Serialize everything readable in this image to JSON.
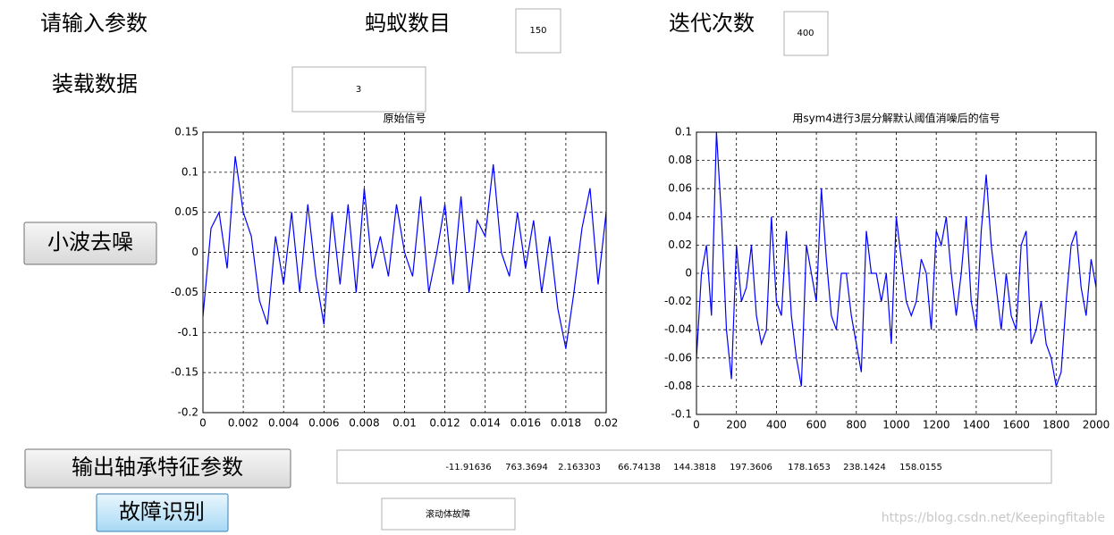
{
  "labels": {
    "prompt": "请输入参数",
    "ants": "蚂蚁数目",
    "iterations": "迭代次数",
    "load": "装载数据"
  },
  "inputs": {
    "ants": 150,
    "iterations": 400,
    "load": 3
  },
  "buttons": {
    "denoise": "小波去噪",
    "features": "输出轴承特征参数",
    "identify": "故障识别"
  },
  "features": [
    -11.91636,
    763.3694,
    2.163303,
    66.74138,
    144.3818,
    197.3606,
    178.1653,
    238.1424,
    158.0155
  ],
  "result": "滚动体故障",
  "watermark": "https://blog.csdn.net/Keepingfitable",
  "chart_data": [
    {
      "type": "line",
      "title": "原始信号",
      "color": "#0000ff",
      "grid": true,
      "x": [
        0,
        0.0004,
        0.0008,
        0.0012,
        0.0016,
        0.002,
        0.0024,
        0.0028,
        0.0032,
        0.0036,
        0.004,
        0.0044,
        0.0048,
        0.0052,
        0.0056,
        0.006,
        0.0064,
        0.0068,
        0.0072,
        0.0076,
        0.008,
        0.0084,
        0.0088,
        0.0092,
        0.0096,
        0.01,
        0.0104,
        0.0108,
        0.0112,
        0.0116,
        0.012,
        0.0124,
        0.0128,
        0.0132,
        0.0136,
        0.014,
        0.0144,
        0.0148,
        0.0152,
        0.0156,
        0.016,
        0.0164,
        0.0168,
        0.0172,
        0.0176,
        0.018,
        0.0184,
        0.0188,
        0.0192,
        0.0196,
        0.02
      ],
      "values": [
        -0.08,
        0.03,
        0.05,
        -0.02,
        0.12,
        0.05,
        0.02,
        -0.06,
        -0.09,
        0.02,
        -0.04,
        0.05,
        -0.05,
        0.06,
        -0.03,
        -0.09,
        0.05,
        -0.04,
        0.06,
        -0.05,
        0.08,
        -0.02,
        0.02,
        -0.03,
        0.06,
        0,
        -0.03,
        0.07,
        -0.05,
        0,
        0.06,
        -0.04,
        0.07,
        -0.05,
        0.04,
        0.02,
        0.11,
        0,
        -0.03,
        0.05,
        -0.02,
        0.04,
        -0.05,
        0.02,
        -0.07,
        -0.12,
        -0.05,
        0.03,
        0.08,
        -0.04,
        0.05
      ],
      "xlim": [
        0,
        0.02
      ],
      "xticks": [
        0,
        0.002,
        0.004,
        0.006,
        0.008,
        0.01,
        0.012,
        0.014,
        0.016,
        0.018,
        0.02
      ],
      "ylim": [
        -0.2,
        0.15
      ],
      "yticks": [
        -0.2,
        -0.15,
        -0.1,
        -0.05,
        0,
        0.05,
        0.1,
        0.15
      ]
    },
    {
      "type": "line",
      "title": "用sym4进行3层分解默认阈值消噪后的信号",
      "color": "#0000ff",
      "grid": true,
      "x": [
        0,
        25,
        50,
        75,
        100,
        125,
        150,
        175,
        200,
        225,
        250,
        275,
        300,
        325,
        350,
        375,
        400,
        425,
        450,
        475,
        500,
        525,
        550,
        575,
        600,
        625,
        650,
        675,
        700,
        725,
        750,
        775,
        800,
        825,
        850,
        875,
        900,
        925,
        950,
        975,
        1000,
        1025,
        1050,
        1075,
        1100,
        1125,
        1150,
        1175,
        1200,
        1225,
        1250,
        1275,
        1300,
        1325,
        1350,
        1375,
        1400,
        1425,
        1450,
        1475,
        1500,
        1525,
        1550,
        1575,
        1600,
        1625,
        1650,
        1675,
        1700,
        1725,
        1750,
        1775,
        1800,
        1825,
        1850,
        1875,
        1900,
        1925,
        1950,
        1975,
        2000
      ],
      "values": [
        -0.06,
        0,
        0.02,
        -0.03,
        0.1,
        0.04,
        -0.04,
        -0.075,
        0.02,
        -0.02,
        -0.01,
        0.02,
        -0.03,
        -0.05,
        -0.04,
        0.04,
        -0.02,
        -0.03,
        0.03,
        -0.03,
        -0.06,
        -0.08,
        0.02,
        0,
        -0.02,
        0.06,
        0.01,
        -0.03,
        -0.04,
        0,
        0,
        -0.03,
        -0.05,
        -0.07,
        0.03,
        0,
        0,
        -0.02,
        0,
        -0.05,
        0.04,
        0.01,
        -0.02,
        -0.03,
        -0.02,
        0.01,
        0,
        -0.04,
        0.03,
        0.02,
        0.04,
        0,
        -0.03,
        0,
        0.04,
        -0.02,
        -0.04,
        0.03,
        0.07,
        0.02,
        -0.01,
        -0.04,
        0,
        -0.03,
        -0.04,
        0.02,
        0.03,
        -0.05,
        -0.04,
        -0.02,
        -0.05,
        -0.06,
        -0.08,
        -0.07,
        -0.02,
        0.02,
        0.03,
        -0.01,
        -0.03,
        0.01,
        -0.01
      ],
      "xlim": [
        0,
        2000
      ],
      "xticks": [
        0,
        200,
        400,
        600,
        800,
        1000,
        1200,
        1400,
        1600,
        1800,
        2000
      ],
      "ylim": [
        -0.1,
        0.1
      ],
      "yticks": [
        -0.1,
        -0.08,
        -0.06,
        -0.04,
        -0.02,
        0,
        0.02,
        0.04,
        0.06,
        0.08,
        0.1
      ]
    }
  ]
}
